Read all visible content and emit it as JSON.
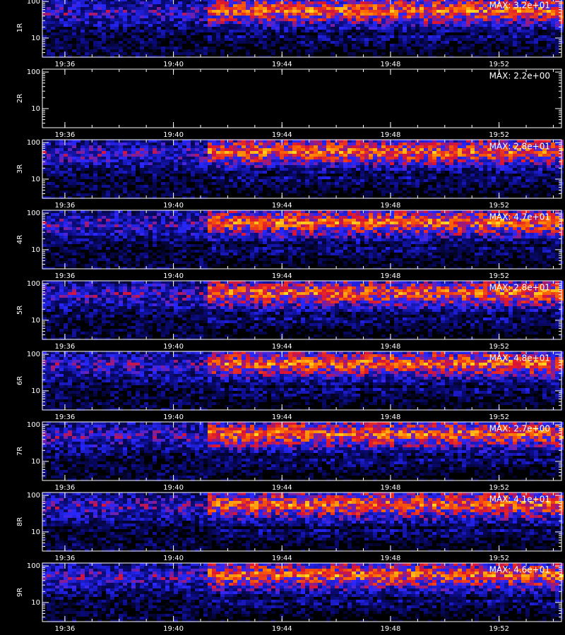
{
  "chart_data": [
    {
      "type": "spectrogram",
      "ylabel": "1R",
      "annotation": "MAX: 3.2e+01",
      "log_scale": true,
      "xlim": [
        1175.17,
        1194.3
      ],
      "xticks": [
        {
          "value": 1176,
          "label": "19:36"
        },
        {
          "value": 1180,
          "label": "19:40"
        },
        {
          "value": 1184,
          "label": "19:44"
        },
        {
          "value": 1188,
          "label": "19:48"
        },
        {
          "value": 1192,
          "label": "19:52"
        }
      ],
      "ylim": [
        3,
        120
      ],
      "yticks": [
        10,
        100
      ]
    },
    {
      "type": "spectrogram",
      "ylabel": "2R",
      "annotation": "MAX: 2.2e+00",
      "log_scale": true,
      "xlim": [
        1175.17,
        1194.3
      ],
      "xticks": [
        {
          "value": 1176,
          "label": "19:36"
        },
        {
          "value": 1180,
          "label": "19:40"
        },
        {
          "value": 1184,
          "label": "19:44"
        },
        {
          "value": 1188,
          "label": "19:48"
        },
        {
          "value": 1192,
          "label": "19:52"
        }
      ],
      "ylim": [
        3,
        120
      ],
      "yticks": [
        10,
        100
      ]
    },
    {
      "type": "spectrogram",
      "ylabel": "3R",
      "annotation": "MAX: 2.8e+01",
      "log_scale": true,
      "xlim": [
        1175.17,
        1194.3
      ],
      "xticks": [
        {
          "value": 1176,
          "label": "19:36"
        },
        {
          "value": 1180,
          "label": "19:40"
        },
        {
          "value": 1184,
          "label": "19:44"
        },
        {
          "value": 1188,
          "label": "19:48"
        },
        {
          "value": 1192,
          "label": "19:52"
        }
      ],
      "ylim": [
        3,
        120
      ],
      "yticks": [
        10,
        100
      ]
    },
    {
      "type": "spectrogram",
      "ylabel": "4R",
      "annotation": "MAX: 4.7e+01",
      "log_scale": true,
      "xlim": [
        1175.17,
        1194.3
      ],
      "xticks": [
        {
          "value": 1176,
          "label": "19:36"
        },
        {
          "value": 1180,
          "label": "19:40"
        },
        {
          "value": 1184,
          "label": "19:44"
        },
        {
          "value": 1188,
          "label": "19:48"
        },
        {
          "value": 1192,
          "label": "19:52"
        }
      ],
      "ylim": [
        3,
        120
      ],
      "yticks": [
        10,
        100
      ]
    },
    {
      "type": "spectrogram",
      "ylabel": "5R",
      "annotation": "MAX: 2.8e+01",
      "log_scale": true,
      "xlim": [
        1175.17,
        1194.3
      ],
      "xticks": [
        {
          "value": 1176,
          "label": "19:36"
        },
        {
          "value": 1180,
          "label": "19:40"
        },
        {
          "value": 1184,
          "label": "19:44"
        },
        {
          "value": 1188,
          "label": "19:48"
        },
        {
          "value": 1192,
          "label": "19:52"
        }
      ],
      "ylim": [
        3,
        120
      ],
      "yticks": [
        10,
        100
      ]
    },
    {
      "type": "spectrogram",
      "ylabel": "6R",
      "annotation": "MAX: 4.8e+01",
      "log_scale": true,
      "xlim": [
        1175.17,
        1194.3
      ],
      "xticks": [
        {
          "value": 1176,
          "label": "19:36"
        },
        {
          "value": 1180,
          "label": "19:40"
        },
        {
          "value": 1184,
          "label": "19:44"
        },
        {
          "value": 1188,
          "label": "19:48"
        },
        {
          "value": 1192,
          "label": "19:52"
        }
      ],
      "ylim": [
        3,
        120
      ],
      "yticks": [
        10,
        100
      ]
    },
    {
      "type": "spectrogram",
      "ylabel": "7R",
      "annotation": "MAX: 2.7e+00",
      "log_scale": true,
      "xlim": [
        1175.17,
        1194.3
      ],
      "xticks": [
        {
          "value": 1176,
          "label": "19:36"
        },
        {
          "value": 1180,
          "label": "19:40"
        },
        {
          "value": 1184,
          "label": "19:44"
        },
        {
          "value": 1188,
          "label": "19:48"
        },
        {
          "value": 1192,
          "label": "19:52"
        }
      ],
      "ylim": [
        3,
        120
      ],
      "yticks": [
        10,
        100
      ]
    },
    {
      "type": "spectrogram",
      "ylabel": "8R",
      "annotation": "MAX: 4.1e+01",
      "log_scale": true,
      "xlim": [
        1175.17,
        1194.3
      ],
      "xticks": [
        {
          "value": 1176,
          "label": "19:36"
        },
        {
          "value": 1180,
          "label": "19:40"
        },
        {
          "value": 1184,
          "label": "19:44"
        },
        {
          "value": 1188,
          "label": "19:48"
        },
        {
          "value": 1192,
          "label": "19:52"
        }
      ],
      "ylim": [
        3,
        120
      ],
      "yticks": [
        10,
        100
      ]
    },
    {
      "type": "spectrogram",
      "ylabel": "9R",
      "annotation": "MAX: 4.6e+01",
      "log_scale": true,
      "xlim": [
        1175.17,
        1194.3
      ],
      "xticks": [
        {
          "value": 1176,
          "label": "19:36"
        },
        {
          "value": 1180,
          "label": "19:40"
        },
        {
          "value": 1184,
          "label": "19:44"
        },
        {
          "value": 1188,
          "label": "19:48"
        },
        {
          "value": 1192,
          "label": "19:52"
        }
      ],
      "ylim": [
        3,
        120
      ],
      "yticks": [
        10,
        100
      ]
    }
  ]
}
